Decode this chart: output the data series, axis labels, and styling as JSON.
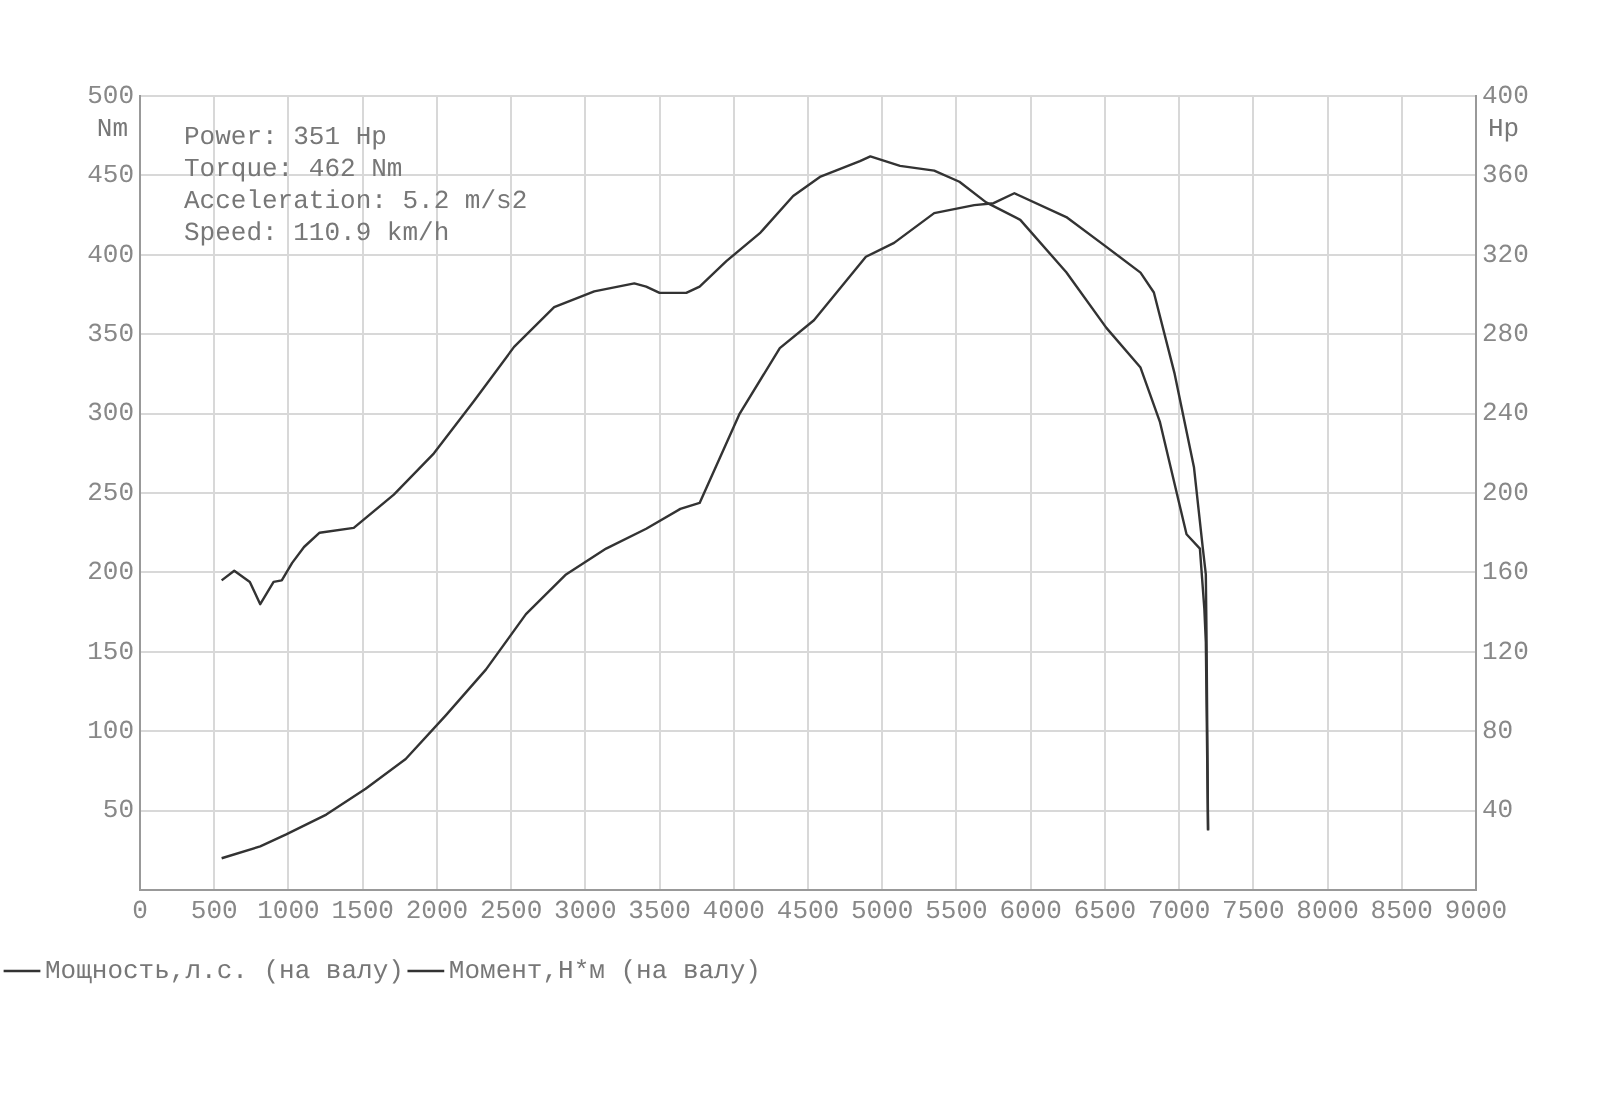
{
  "chart_data": {
    "type": "line",
    "ylabel": "Nm",
    "y2label": "Hp",
    "annotations": [
      "Power: 351 Hp",
      "Torque: 462 Nm",
      "Acceleration: 5.2 m/s2",
      "Speed: 110.9 km/h"
    ],
    "xlim": [
      0,
      9000
    ],
    "xticks": [
      0,
      500,
      1000,
      1500,
      2000,
      2500,
      3000,
      3500,
      4000,
      4500,
      5000,
      5500,
      6000,
      6500,
      7000,
      7500,
      8000,
      8500,
      9000
    ],
    "ylim": [
      0,
      500
    ],
    "yticks": [
      50,
      100,
      150,
      200,
      250,
      300,
      350,
      400,
      450,
      500
    ],
    "y2lim": [
      0,
      400
    ],
    "y2ticks": [
      40,
      80,
      120,
      160,
      200,
      240,
      280,
      320,
      360,
      400
    ],
    "grid": true,
    "legend": "bottom left",
    "marker": "none",
    "line_style": "solid",
    "series": [
      {
        "name": "Мощность,л.с. (на валу)",
        "color": "#333333",
        "axis": "y2",
        "x": [
          550,
          810,
          985,
          1255,
          1520,
          1790,
          2060,
          2330,
          2600,
          2870,
          3140,
          3410,
          3640,
          3770,
          4040,
          4310,
          4540,
          4890,
          5080,
          5350,
          5620,
          5750,
          5890,
          6240,
          6510,
          6740,
          6830,
          6970,
          7100,
          7160,
          7180,
          7185,
          7195
        ],
        "values": [
          16,
          22,
          28,
          38,
          51,
          66,
          88,
          111,
          139,
          159,
          172,
          182,
          192,
          195,
          240,
          273,
          287,
          319,
          326,
          341,
          345,
          346,
          351,
          339,
          324,
          311,
          301,
          260,
          213,
          172,
          159,
          125,
          30
        ]
      },
      {
        "name": "Момент,Н*м (на валу)",
        "color": "#333333",
        "x": [
          550,
          635,
          740,
          810,
          900,
          955,
          1025,
          1105,
          1210,
          1440,
          1710,
          1980,
          2250,
          2520,
          2790,
          3060,
          3330,
          3410,
          3500,
          3680,
          3770,
          3950,
          4180,
          4400,
          4580,
          4850,
          4920,
          5120,
          5350,
          5520,
          5700,
          5930,
          6240,
          6510,
          6740,
          6870,
          7050,
          7140,
          7170,
          7180,
          7195
        ],
        "values": [
          195,
          201,
          194,
          180,
          194,
          195,
          206,
          216,
          225,
          228,
          249,
          275,
          308,
          342,
          367,
          377,
          382,
          380,
          376,
          376,
          380,
          396,
          414,
          437,
          449,
          459,
          462,
          456,
          453,
          446,
          433,
          422,
          389,
          354,
          329,
          295,
          224,
          215,
          177,
          156,
          38
        ]
      }
    ]
  }
}
